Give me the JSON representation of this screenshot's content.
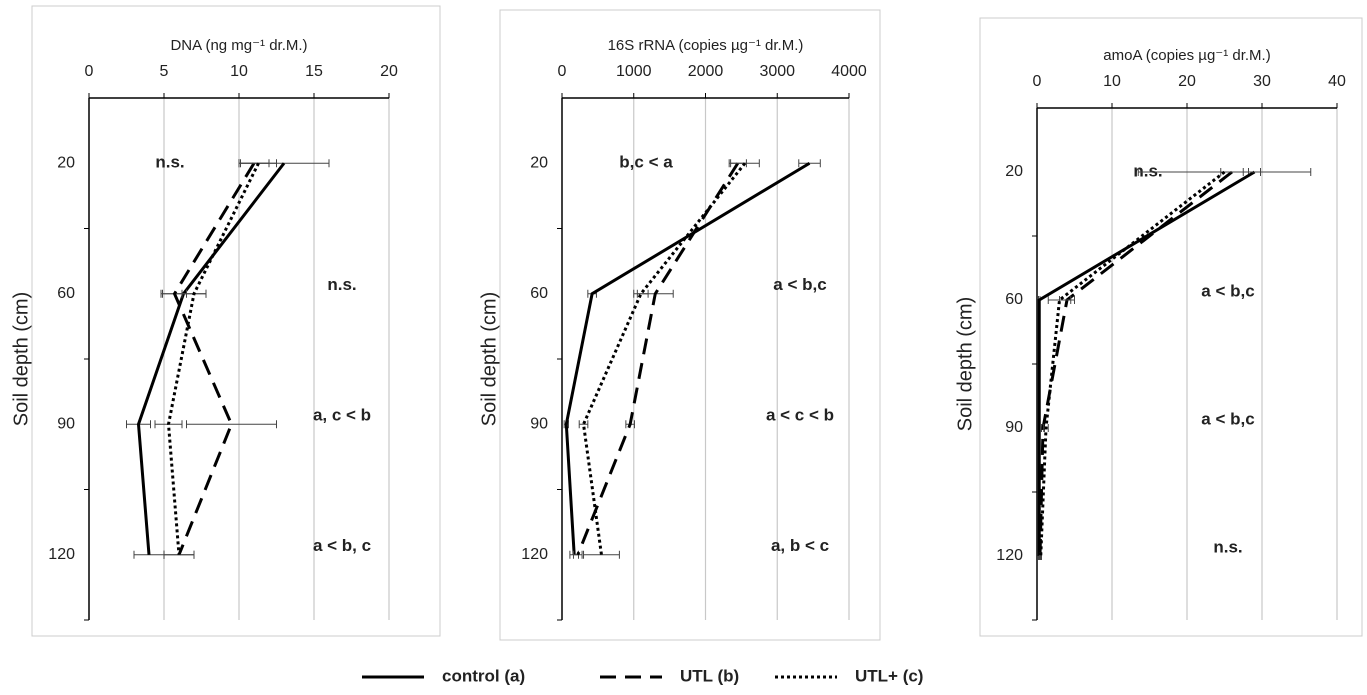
{
  "chart_data": [
    {
      "type": "line",
      "x_label": "DNA (ng mg⁻¹ dr.M.)",
      "y_label": "Soil depth (cm)",
      "categories": [
        "20",
        "60",
        "90",
        "120"
      ],
      "xlim": [
        0,
        20
      ],
      "xticks": [
        0,
        5,
        10,
        15,
        20
      ],
      "grid": true,
      "series": [
        {
          "name": "control (a)",
          "color": "#000000",
          "line_style": "solid",
          "values": [
            13,
            6.3,
            3.3,
            4
          ],
          "errors": [
            3,
            1.5,
            0.8,
            1
          ]
        },
        {
          "name": "UTL (b)",
          "color": "#000000",
          "line_style": "dashed",
          "values": [
            11,
            5.7,
            9.5,
            6
          ],
          "errors": [
            1,
            0.8,
            3,
            1
          ]
        },
        {
          "name": "UTL+ (c)",
          "color": "#000000",
          "line_style": "dotted",
          "values": [
            11.3,
            7,
            5.3,
            6
          ],
          "errors": [
            1.2,
            0.8,
            0.9,
            1
          ]
        }
      ],
      "annotations": [
        "n.s.",
        "n.s.",
        "a, c < b",
        "a < b, c"
      ]
    },
    {
      "type": "line",
      "x_label": "16S rRNA (copies µg⁻¹ dr.M.)",
      "y_label": "Soil depth (cm)",
      "categories": [
        "20",
        "60",
        "90",
        "120"
      ],
      "xlim": [
        0,
        4000
      ],
      "xticks": [
        0,
        1000,
        2000,
        3000,
        4000
      ],
      "grid": true,
      "series": [
        {
          "values": [
            3450,
            420,
            60,
            170
          ],
          "errors": [
            150,
            60,
            30,
            60
          ]
        },
        {
          "values": [
            2450,
            1300,
            950,
            220
          ],
          "errors": [
            120,
            250,
            60,
            60
          ]
        },
        {
          "values": [
            2550,
            1100,
            300,
            550
          ],
          "errors": [
            200,
            100,
            60,
            250
          ]
        }
      ],
      "annotations": [
        "b,c < a",
        "a < b,c",
        "a < c < b",
        "a, b < c"
      ]
    },
    {
      "type": "line",
      "x_label": "amoA (copies µg⁻¹ dr.M.)",
      "y_label": "Soil depth (cm)",
      "categories": [
        "20",
        "60",
        "90",
        "120"
      ],
      "xlim": [
        0,
        40
      ],
      "xticks": [
        0,
        10,
        20,
        30,
        40
      ],
      "grid": true,
      "series": [
        {
          "values": [
            29,
            0.3,
            0.3,
            0.3
          ],
          "errors": [
            0.8,
            0.1,
            0.1,
            0.1
          ]
        },
        {
          "values": [
            26,
            4,
            0.8,
            0.4
          ],
          "errors": [
            1.5,
            1,
            0.2,
            0.1
          ]
        },
        {
          "values": [
            25,
            3,
            1.2,
            0.5
          ],
          "errors": [
            11.5,
            1.5,
            0.3,
            0.1
          ]
        }
      ],
      "annotations": [
        "n.s.",
        "a < b,c",
        "a < b,c",
        "n.s."
      ]
    }
  ]
}
